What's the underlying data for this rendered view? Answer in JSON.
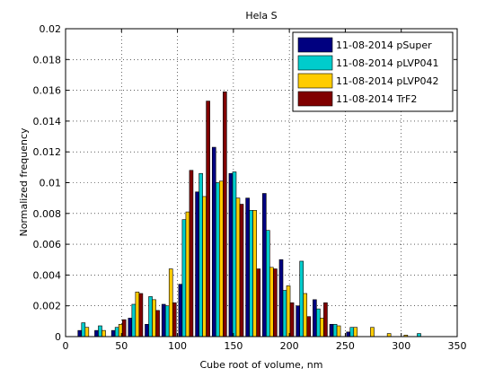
{
  "chart_data": {
    "type": "bar",
    "title": "Hela S",
    "xlabel": "Cube root of volume, nm",
    "ylabel": "Normalized frequency",
    "xlim": [
      0,
      350
    ],
    "ylim": [
      0,
      0.02
    ],
    "xticks": [
      0,
      50,
      100,
      150,
      200,
      250,
      300,
      350
    ],
    "yticks": [
      0,
      0.002,
      0.004,
      0.006,
      0.008,
      0.01,
      0.012,
      0.014,
      0.016,
      0.018,
      0.02
    ],
    "grid": true,
    "legend_position": "top-right",
    "bin_centers": [
      17.5,
      32.5,
      47.5,
      62.5,
      77.5,
      92.5,
      107.5,
      122.5,
      137.5,
      152.5,
      167.5,
      182.5,
      197.5,
      212.5,
      227.5,
      242.5,
      257.5,
      272.5,
      287.5,
      302.5,
      317.5,
      332.5
    ],
    "series": [
      {
        "name": "11-08-2014 pSuper",
        "color": "#000080",
        "values": [
          0.0004,
          0.0004,
          0.0004,
          0.0012,
          0.0008,
          0.0021,
          0.0034,
          0.0094,
          0.0123,
          0.0106,
          0.009,
          0.0093,
          0.005,
          0.002,
          0.0024,
          0.0008,
          0.0003,
          0,
          0,
          0,
          0,
          0
        ]
      },
      {
        "name": "11-08-2014 pLVP041",
        "color": "#00cccc",
        "values": [
          0.0009,
          0.0007,
          0.0006,
          0.0021,
          0.0026,
          0.002,
          0.0076,
          0.0106,
          0.01,
          0.0107,
          0.0082,
          0.0069,
          0.003,
          0.0049,
          0.0018,
          0.0008,
          0.0006,
          0,
          0,
          0,
          0.0002,
          0
        ]
      },
      {
        "name": "11-08-2014 pLVP042",
        "color": "#ffcc00",
        "values": [
          0.0006,
          0.0004,
          0.0008,
          0.0029,
          0.0024,
          0.0044,
          0.0081,
          0.0091,
          0.0101,
          0.009,
          0.0082,
          0.0045,
          0.0033,
          0.0028,
          0.0012,
          0.0007,
          0.0006,
          0.0006,
          0.0002,
          0.0001,
          0,
          0
        ]
      },
      {
        "name": "11-08-2014 TrF2",
        "color": "#800000",
        "values": [
          0,
          0,
          0.0011,
          0.0028,
          0.0017,
          0.0022,
          0.0108,
          0.0153,
          0.0159,
          0.0086,
          0.0044,
          0.0044,
          0.0022,
          0.0013,
          0.0022,
          0,
          0,
          0,
          0,
          0,
          0,
          0
        ]
      }
    ]
  }
}
